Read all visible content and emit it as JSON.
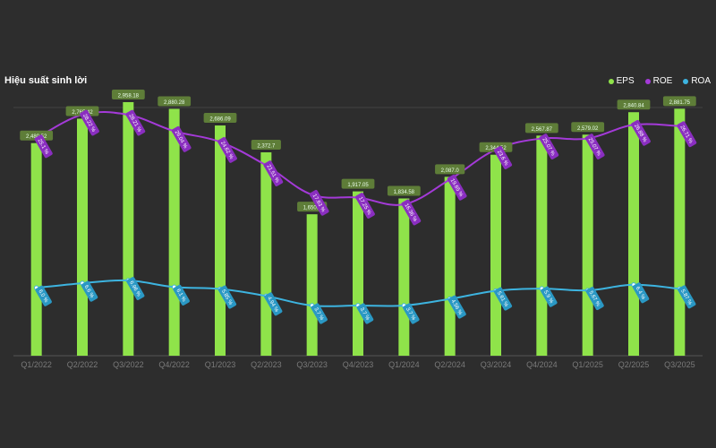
{
  "title": "Hiệu suất sinh lời",
  "colors": {
    "eps": "#8fe34a",
    "roe": "#a43ad8",
    "roa": "#3db4e0",
    "eps_label_bg": "#5e7d38",
    "roe_label_bg": "#8a2ec0",
    "roa_label_bg": "#2a98c4"
  },
  "legend": [
    {
      "label": "EPS",
      "color": "#8fe34a"
    },
    {
      "label": "ROE",
      "color": "#a43ad8"
    },
    {
      "label": "ROA",
      "color": "#3db4e0"
    }
  ],
  "chart_data": {
    "type": "bar",
    "title": "Hiệu suất sinh lời",
    "categories": [
      "Q1/2022",
      "Q2/2022",
      "Q3/2022",
      "Q4/2022",
      "Q1/2023",
      "Q2/2023",
      "Q3/2023",
      "Q4/2023",
      "Q1/2024",
      "Q2/2024",
      "Q3/2024",
      "Q4/2024",
      "Q1/2025",
      "Q2/2025",
      "Q3/2025"
    ],
    "legend_position": "top-right",
    "grid": false,
    "series": [
      {
        "name": "EPS",
        "type": "bar",
        "values": [
          2480.52,
          2765.42,
          2958.18,
          2880.28,
          2686.09,
          2372.7,
          1650.0,
          1917.05,
          1834.58,
          2087.0,
          2344.52,
          2567.87,
          2579.02,
          2840.84,
          2881.75
        ],
        "labels": [
          "2,480.52",
          "2,765.42",
          "2,958.18",
          "2,880.28",
          "2,686.09",
          "2,372.7",
          "1,650.0",
          "1,917.05",
          "1,834.58",
          "2,087.0",
          "2,344.52",
          "2,567.87",
          "2,579.02",
          "2,840.84",
          "2,881.75"
        ]
      },
      {
        "name": "ROE",
        "type": "line",
        "values": [
          25.1,
          28.22,
          28.21,
          26.04,
          24.62,
          21.51,
          17.63,
          17.25,
          16.36,
          19.65,
          23.6,
          25.07,
          25.07,
          26.88,
          26.71
        ],
        "labels": [
          "25.1 %",
          "28.22 %",
          "28.21 %",
          "26.04 %",
          "24.62 %",
          "21.51 %",
          "17.63 %",
          "17.25 %",
          "16.36 %",
          "19.65 %",
          "23.6 %",
          "25.07 %",
          "25.07 %",
          "26.88 %",
          "26.71 %"
        ]
      },
      {
        "name": "ROA",
        "type": "line",
        "values": [
          6.0,
          6.6,
          6.96,
          6.1,
          5.85,
          4.94,
          3.7,
          3.7,
          3.7,
          4.56,
          5.61,
          5.9,
          5.67,
          6.4,
          5.87
        ],
        "labels": [
          "6.0 %",
          "6.6 %",
          "6.96 %",
          "6.1 %",
          "5.85 %",
          "4.94 %",
          "3.7 %",
          "3.7 %",
          "3.7 %",
          "4.56 %",
          "5.61 %",
          "5.9 %",
          "5.67 %",
          "6.4 %",
          "5.87 %"
        ]
      }
    ]
  }
}
